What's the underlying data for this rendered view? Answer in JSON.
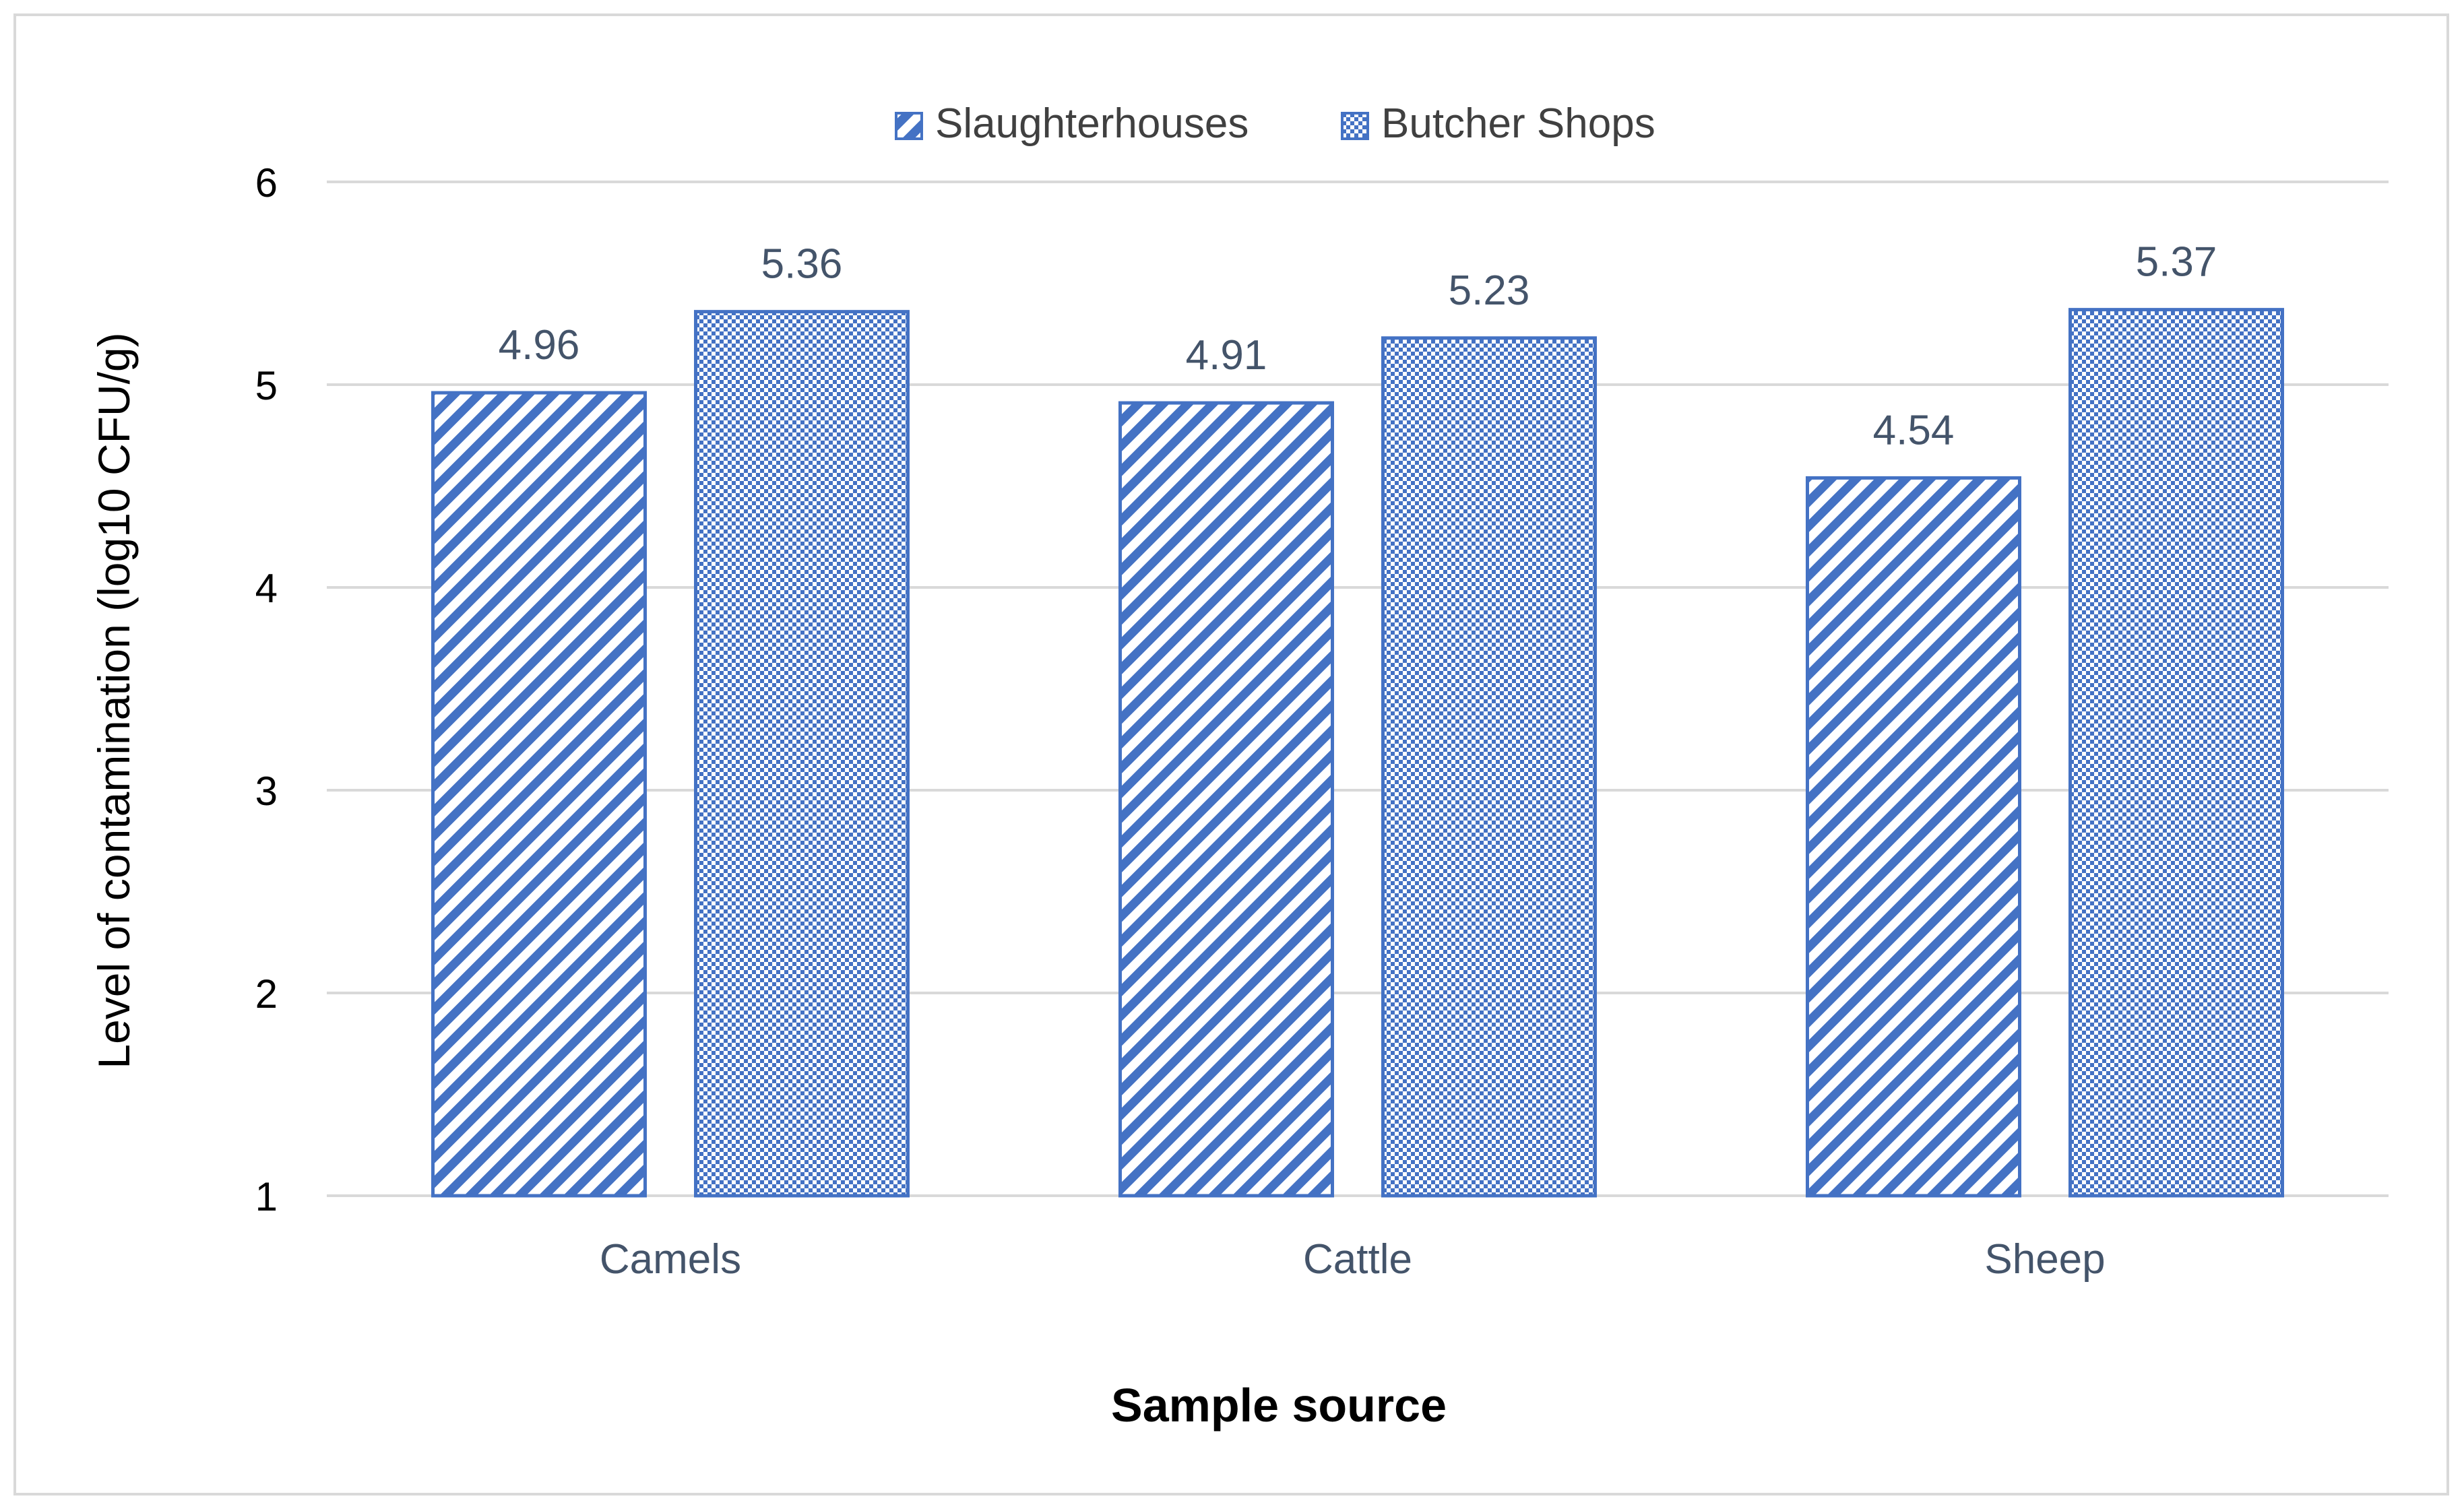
{
  "chart_data": {
    "type": "bar",
    "title": "",
    "categories": [
      "Camels",
      "Cattle",
      "Sheep"
    ],
    "series": [
      {
        "name": "Slaughterhouses",
        "values": [
          4.96,
          4.91,
          4.54
        ],
        "pattern": "diagonal-stripes"
      },
      {
        "name": "Butcher Shops",
        "values": [
          5.36,
          5.23,
          5.37
        ],
        "pattern": "checkered"
      }
    ],
    "data_labels": [
      [
        "4.96",
        "4.91",
        "4.54"
      ],
      [
        "5.36",
        "5.23",
        "5.37"
      ]
    ],
    "xlabel": "Sample source",
    "ylabel": "Level of contamination (log10 CFU/g)",
    "ylim": [
      1,
      6
    ],
    "yticks": [
      "1",
      "2",
      "3",
      "4",
      "5",
      "6"
    ],
    "grid": true,
    "legend_position": "top-center",
    "colors": {
      "bar_stroke": "#4472c4",
      "bar_pattern": "#4472c4",
      "grid": "#d9d9d9",
      "tick_text": "#404040",
      "label_text": "#44546a",
      "axis_title": "#000000"
    }
  }
}
